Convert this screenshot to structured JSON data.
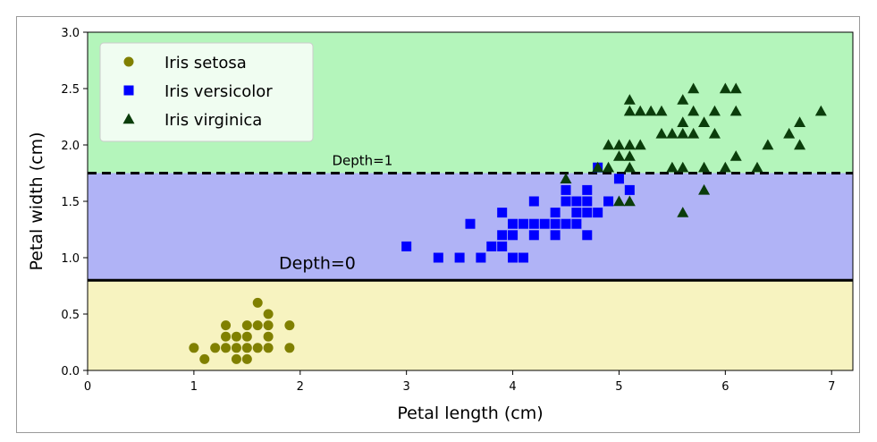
{
  "chart_data": {
    "type": "scatter",
    "xlabel": "Petal length (cm)",
    "ylabel": "Petal width (cm)",
    "xlim": [
      0,
      7.2
    ],
    "ylim": [
      0,
      3.0
    ],
    "xticks": [
      "0",
      "1",
      "2",
      "3",
      "4",
      "5",
      "6",
      "7"
    ],
    "yticks": [
      "0.0",
      "0.5",
      "1.0",
      "1.5",
      "2.0",
      "2.5",
      "3.0"
    ],
    "grid": false,
    "legend_position": "upper-left",
    "regions": [
      {
        "name": "setosa-region",
        "y_from": 0.0,
        "y_to": 0.8,
        "color": "#f7f3c0"
      },
      {
        "name": "versicolor-region",
        "y_from": 0.8,
        "y_to": 1.75,
        "color": "#b0b3f6"
      },
      {
        "name": "virginica-region",
        "y_from": 1.75,
        "y_to": 3.0,
        "color": "#b4f5bb"
      }
    ],
    "boundaries": [
      {
        "label": "Depth=0",
        "y": 0.8,
        "style": "solid",
        "label_x": 1.8,
        "label_y": 0.9
      },
      {
        "label": "Depth=1",
        "y": 1.75,
        "style": "dashed",
        "label_x": 2.3,
        "label_y": 1.82
      }
    ],
    "series": [
      {
        "name": "Iris setosa",
        "marker": "circle",
        "color": "#808000",
        "points": [
          [
            1.0,
            0.2
          ],
          [
            1.1,
            0.1
          ],
          [
            1.2,
            0.2
          ],
          [
            1.3,
            0.2
          ],
          [
            1.3,
            0.3
          ],
          [
            1.3,
            0.4
          ],
          [
            1.4,
            0.2
          ],
          [
            1.4,
            0.3
          ],
          [
            1.4,
            0.1
          ],
          [
            1.5,
            0.2
          ],
          [
            1.5,
            0.4
          ],
          [
            1.5,
            0.1
          ],
          [
            1.5,
            0.3
          ],
          [
            1.6,
            0.2
          ],
          [
            1.6,
            0.4
          ],
          [
            1.6,
            0.6
          ],
          [
            1.7,
            0.2
          ],
          [
            1.7,
            0.3
          ],
          [
            1.7,
            0.4
          ],
          [
            1.7,
            0.5
          ],
          [
            1.9,
            0.2
          ],
          [
            1.9,
            0.4
          ]
        ]
      },
      {
        "name": "Iris versicolor",
        "marker": "square",
        "color": "#0000ff",
        "points": [
          [
            3.0,
            1.1
          ],
          [
            3.3,
            1.0
          ],
          [
            3.5,
            1.0
          ],
          [
            3.6,
            1.3
          ],
          [
            3.7,
            1.0
          ],
          [
            3.8,
            1.1
          ],
          [
            3.9,
            1.1
          ],
          [
            3.9,
            1.2
          ],
          [
            3.9,
            1.4
          ],
          [
            4.0,
            1.0
          ],
          [
            4.0,
            1.2
          ],
          [
            4.0,
            1.3
          ],
          [
            4.1,
            1.0
          ],
          [
            4.1,
            1.3
          ],
          [
            4.2,
            1.2
          ],
          [
            4.2,
            1.3
          ],
          [
            4.2,
            1.5
          ],
          [
            4.3,
            1.3
          ],
          [
            4.4,
            1.2
          ],
          [
            4.4,
            1.3
          ],
          [
            4.4,
            1.4
          ],
          [
            4.5,
            1.3
          ],
          [
            4.5,
            1.5
          ],
          [
            4.5,
            1.6
          ],
          [
            4.6,
            1.3
          ],
          [
            4.6,
            1.4
          ],
          [
            4.6,
            1.5
          ],
          [
            4.7,
            1.2
          ],
          [
            4.7,
            1.4
          ],
          [
            4.7,
            1.5
          ],
          [
            4.7,
            1.6
          ],
          [
            4.8,
            1.4
          ],
          [
            4.8,
            1.8
          ],
          [
            4.9,
            1.5
          ],
          [
            5.0,
            1.7
          ],
          [
            5.1,
            1.6
          ]
        ]
      },
      {
        "name": "Iris virginica",
        "marker": "triangle",
        "color": "#0b3d0b",
        "points": [
          [
            4.5,
            1.7
          ],
          [
            4.8,
            1.8
          ],
          [
            4.9,
            1.8
          ],
          [
            4.9,
            2.0
          ],
          [
            5.0,
            1.5
          ],
          [
            5.0,
            1.9
          ],
          [
            5.0,
            2.0
          ],
          [
            5.1,
            1.5
          ],
          [
            5.1,
            1.8
          ],
          [
            5.1,
            1.9
          ],
          [
            5.1,
            2.0
          ],
          [
            5.1,
            2.3
          ],
          [
            5.1,
            2.4
          ],
          [
            5.2,
            2.0
          ],
          [
            5.2,
            2.3
          ],
          [
            5.3,
            2.3
          ],
          [
            5.4,
            2.1
          ],
          [
            5.4,
            2.3
          ],
          [
            5.5,
            1.8
          ],
          [
            5.5,
            2.1
          ],
          [
            5.6,
            1.4
          ],
          [
            5.6,
            1.8
          ],
          [
            5.6,
            2.1
          ],
          [
            5.6,
            2.2
          ],
          [
            5.6,
            2.4
          ],
          [
            5.7,
            2.1
          ],
          [
            5.7,
            2.3
          ],
          [
            5.7,
            2.5
          ],
          [
            5.8,
            1.6
          ],
          [
            5.8,
            1.8
          ],
          [
            5.8,
            2.2
          ],
          [
            5.9,
            2.1
          ],
          [
            5.9,
            2.3
          ],
          [
            6.0,
            1.8
          ],
          [
            6.0,
            2.5
          ],
          [
            6.1,
            1.9
          ],
          [
            6.1,
            2.3
          ],
          [
            6.1,
            2.5
          ],
          [
            6.3,
            1.8
          ],
          [
            6.4,
            2.0
          ],
          [
            6.6,
            2.1
          ],
          [
            6.7,
            2.0
          ],
          [
            6.7,
            2.2
          ],
          [
            6.9,
            2.3
          ]
        ]
      }
    ]
  }
}
